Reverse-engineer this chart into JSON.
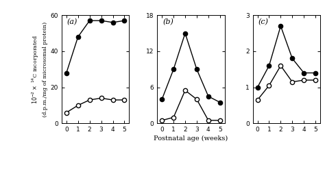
{
  "x": [
    0,
    1,
    2,
    3,
    4,
    5
  ],
  "panel_a": {
    "label": "(a)",
    "filled": [
      28,
      48,
      57,
      57,
      56,
      57
    ],
    "open": [
      6,
      10,
      13,
      14,
      13,
      13
    ],
    "ylim": [
      0,
      60
    ],
    "yticks": [
      0,
      20,
      40,
      60
    ]
  },
  "panel_b": {
    "label": "(b)",
    "filled": [
      4,
      9,
      15,
      9,
      4.5,
      3.5
    ],
    "open": [
      0.5,
      1.0,
      5.5,
      4.0,
      0.5,
      0.5
    ],
    "ylim": [
      0,
      18
    ],
    "yticks": [
      0,
      6,
      12,
      18
    ]
  },
  "panel_c": {
    "label": "(c)",
    "filled": [
      1.0,
      1.6,
      2.7,
      1.8,
      1.4,
      1.4
    ],
    "open": [
      0.65,
      1.05,
      1.6,
      1.15,
      1.2,
      1.2
    ],
    "ylim": [
      0,
      3
    ],
    "yticks": [
      0,
      1,
      2,
      3
    ]
  },
  "xlabel": "Postnatal age (weeks)",
  "ylabel_line1": "$10^{-2} \\times$ $^{14}$C incorporated",
  "ylabel_line2": "(d.p.m./mg of microsomal protein)",
  "xticks": [
    0,
    1,
    2,
    3,
    4,
    5
  ],
  "bg_color": "#ffffff",
  "line_color": "black",
  "markersize": 4.5,
  "linewidth": 1.0
}
